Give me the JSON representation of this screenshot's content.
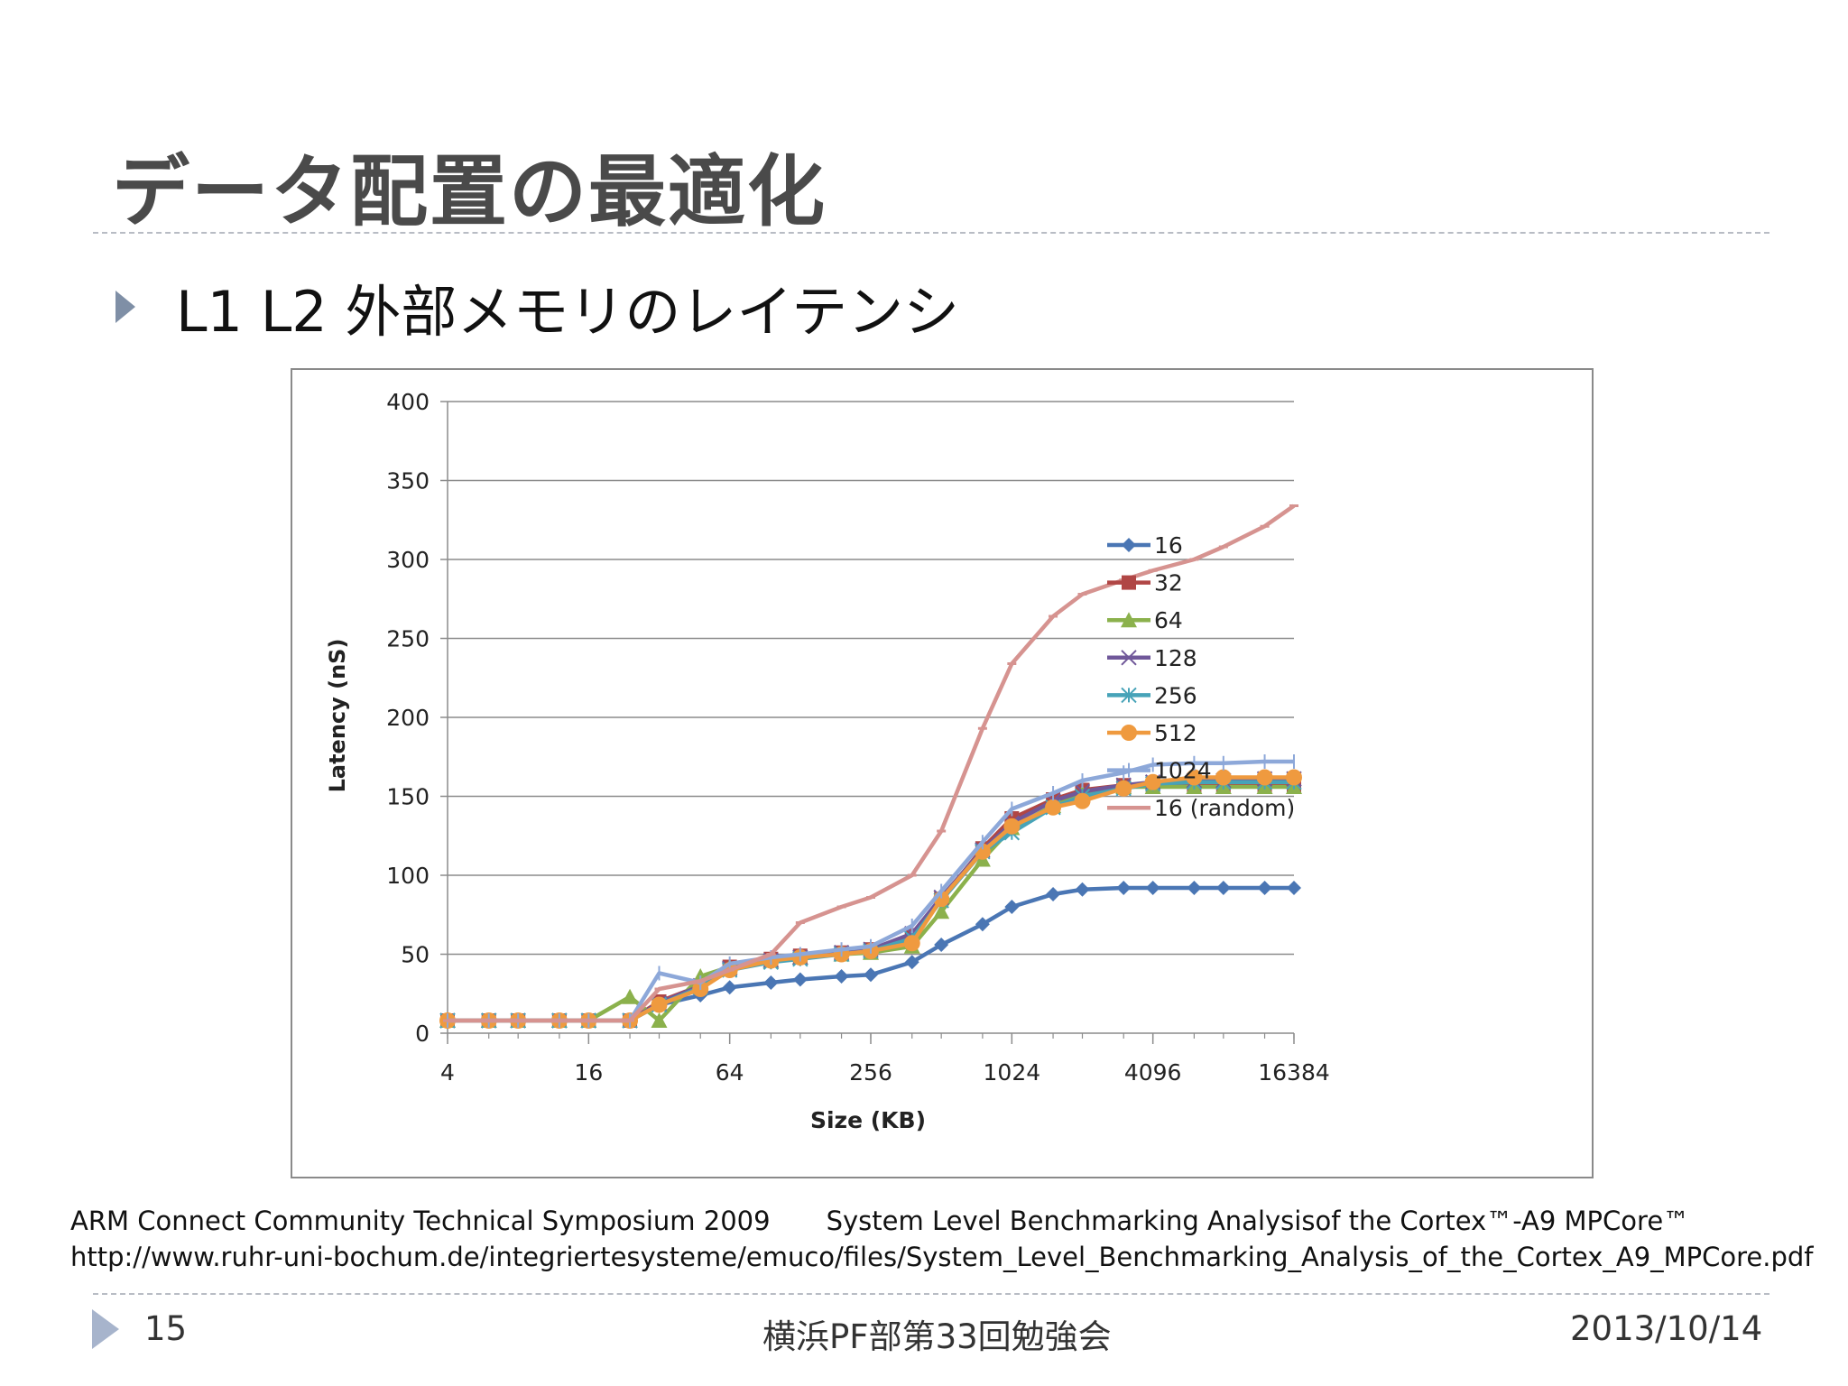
{
  "slide": {
    "title": "データ配置の最適化",
    "bullet": "L1 L2 外部メモリのレイテンシ",
    "source_line1_left": "ARM Connect Community Technical Symposium 2009",
    "source_line1_right": "System Level Benchmarking Analysisof the Cortex™-A9 MPCore™",
    "source_line2": "http://www.ruhr-uni-bochum.de/integriertesysteme/emuco/files/System_Level_Benchmarking_Analysis_of_the_Cortex_A9_MPCore.pdf",
    "page_number": "15",
    "event": "横浜PF部第33回勉強会",
    "date": "2013/10/14",
    "colors": {
      "bullet": "#7f8fa6",
      "footer_triangle": "#a7b4cc",
      "title": "#4a4a4a"
    }
  },
  "chart_data": {
    "type": "line",
    "xlabel": "Size (KB)",
    "ylabel": "Latency (nS)",
    "xscale": "log2",
    "xlim": [
      4,
      16384
    ],
    "ylim": [
      0,
      400
    ],
    "yticks": [
      0,
      50,
      100,
      150,
      200,
      250,
      300,
      350,
      400
    ],
    "xticks": [
      4,
      16,
      64,
      256,
      1024,
      4096,
      16384
    ],
    "xtick_labels": [
      "4",
      "16",
      "64",
      "256",
      "1024",
      "4096",
      "16384"
    ],
    "ytick_labels": [
      "0",
      "50",
      "100",
      "150",
      "200",
      "250",
      "300",
      "350",
      "400"
    ],
    "grid": "horizontal",
    "legend_position": "right",
    "x": [
      4,
      6,
      8,
      12,
      16,
      24,
      32,
      48,
      64,
      96,
      128,
      192,
      256,
      384,
      512,
      768,
      1024,
      1536,
      2048,
      3072,
      4096,
      6144,
      8192,
      12288,
      16384
    ],
    "series": [
      {
        "name": "16",
        "color": "#4a76b4",
        "marker": "diamond",
        "values": [
          8,
          8,
          8,
          8,
          8,
          8,
          18,
          24,
          29,
          32,
          34,
          36,
          37,
          45,
          56,
          69,
          80,
          88,
          91,
          92,
          92,
          92,
          92,
          92,
          92
        ]
      },
      {
        "name": "32",
        "color": "#b04645",
        "marker": "square",
        "values": [
          8,
          8,
          8,
          8,
          8,
          8,
          20,
          30,
          42,
          47,
          49,
          51,
          53,
          62,
          85,
          117,
          136,
          148,
          154,
          157,
          157,
          157,
          157,
          157,
          157
        ]
      },
      {
        "name": "64",
        "color": "#8bb14c",
        "marker": "triangle",
        "values": [
          8,
          8,
          8,
          8,
          8,
          23,
          8,
          36,
          42,
          46,
          48,
          50,
          51,
          55,
          77,
          110,
          130,
          144,
          152,
          156,
          156,
          156,
          156,
          156,
          156
        ]
      },
      {
        "name": "128",
        "color": "#70589a",
        "marker": "x",
        "values": [
          8,
          8,
          8,
          8,
          8,
          8,
          19,
          30,
          41,
          46,
          48,
          51,
          53,
          63,
          86,
          116,
          133,
          147,
          153,
          157,
          159,
          160,
          160,
          161,
          161
        ]
      },
      {
        "name": "256",
        "color": "#47a3b8",
        "marker": "star",
        "values": [
          8,
          8,
          8,
          8,
          8,
          8,
          18,
          29,
          40,
          45,
          47,
          50,
          52,
          60,
          84,
          115,
          127,
          143,
          150,
          155,
          158,
          159,
          159,
          159,
          159
        ]
      },
      {
        "name": "512",
        "color": "#ef9a3f",
        "marker": "circle",
        "values": [
          8,
          8,
          8,
          8,
          8,
          8,
          18,
          28,
          40,
          46,
          48,
          50,
          52,
          57,
          85,
          115,
          131,
          143,
          147,
          155,
          159,
          162,
          162,
          162,
          162
        ]
      },
      {
        "name": "1024",
        "color": "#8da8d9",
        "marker": "plus",
        "values": [
          8,
          8,
          8,
          8,
          8,
          8,
          38,
          32,
          44,
          48,
          50,
          53,
          55,
          68,
          90,
          121,
          142,
          152,
          160,
          165,
          170,
          171,
          171,
          172,
          172
        ]
      },
      {
        "name": "16 (random)",
        "color": "#d69390",
        "marker": "dash",
        "values": [
          8,
          8,
          8,
          8,
          8,
          8,
          28,
          33,
          40,
          50,
          70,
          80,
          86,
          100,
          128,
          193,
          234,
          264,
          278,
          287,
          293,
          300,
          308,
          321,
          334
        ]
      }
    ]
  }
}
